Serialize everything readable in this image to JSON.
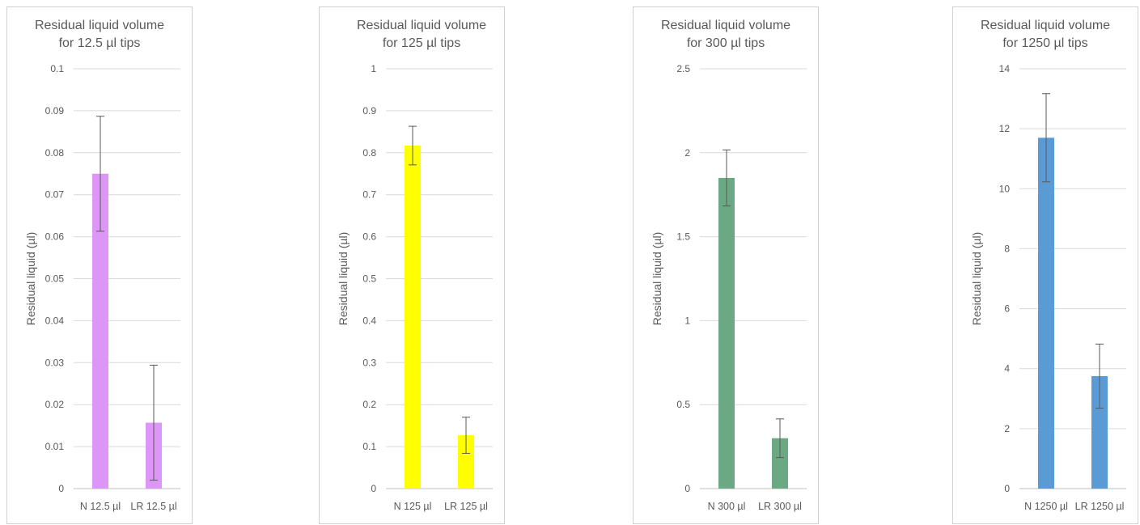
{
  "chart_data": [
    {
      "type": "bar",
      "title": [
        "Residual liquid volume",
        "for 12.5 µl tips"
      ],
      "ylabel": "Residual liquid (µl)",
      "xlabel": "",
      "categories": [
        "N 12.5 µl",
        "LR 12.5 µl"
      ],
      "values": [
        0.075,
        0.0157
      ],
      "errors": [
        0.0137,
        0.0137
      ],
      "ylim": [
        0,
        0.1
      ],
      "yticks": [
        0,
        0.01,
        0.02,
        0.03,
        0.04,
        0.05,
        0.06,
        0.07,
        0.08,
        0.09,
        0.1
      ],
      "ytick_labels": [
        "0",
        "0.01",
        "0.02",
        "0.03",
        "0.04",
        "0.05",
        "0.06",
        "0.07",
        "0.08",
        "0.09",
        "0.1"
      ],
      "color": "#dc96f5",
      "grid": true
    },
    {
      "type": "bar",
      "title": [
        "Residual liquid volume",
        "for 125 µl tips"
      ],
      "ylabel": "Residual liquid (µl)",
      "xlabel": "",
      "categories": [
        "N 125 µl",
        "LR 125 µl"
      ],
      "values": [
        0.817,
        0.127
      ],
      "errors": [
        0.046,
        0.043
      ],
      "ylim": [
        0,
        1
      ],
      "yticks": [
        0,
        0.1,
        0.2,
        0.3,
        0.4,
        0.5,
        0.6,
        0.7,
        0.8,
        0.9,
        1
      ],
      "ytick_labels": [
        "0",
        "0.1",
        "0.2",
        "0.3",
        "0.4",
        "0.5",
        "0.6",
        "0.7",
        "0.8",
        "0.9",
        "1"
      ],
      "color": "#ffff00",
      "grid": true
    },
    {
      "type": "bar",
      "title": [
        "Residual liquid volume",
        "for 300 µl tips"
      ],
      "ylabel": "Residual liquid (µl)",
      "xlabel": "",
      "categories": [
        "N 300 µl",
        "LR 300 µl"
      ],
      "values": [
        1.85,
        0.3
      ],
      "errors": [
        0.167,
        0.115
      ],
      "ylim": [
        0,
        2.5
      ],
      "yticks": [
        0,
        0.5,
        1,
        1.5,
        2,
        2.5
      ],
      "ytick_labels": [
        "0",
        "0.5",
        "1",
        "1.5",
        "2",
        "2.5"
      ],
      "color": "#6aa984",
      "grid": true
    },
    {
      "type": "bar",
      "title": [
        "Residual liquid volume",
        "for 1250 µl tips"
      ],
      "ylabel": "Residual liquid (µl)",
      "xlabel": "",
      "categories": [
        "N 1250 µl",
        "LR 1250 µl"
      ],
      "values": [
        11.7,
        3.75
      ],
      "errors": [
        1.47,
        1.07
      ],
      "ylim": [
        0,
        14
      ],
      "yticks": [
        0,
        2,
        4,
        6,
        8,
        10,
        12,
        14
      ],
      "ytick_labels": [
        "0",
        "2",
        "4",
        "6",
        "8",
        "10",
        "12",
        "14"
      ],
      "color": "#5b9bd5",
      "grid": true
    }
  ]
}
